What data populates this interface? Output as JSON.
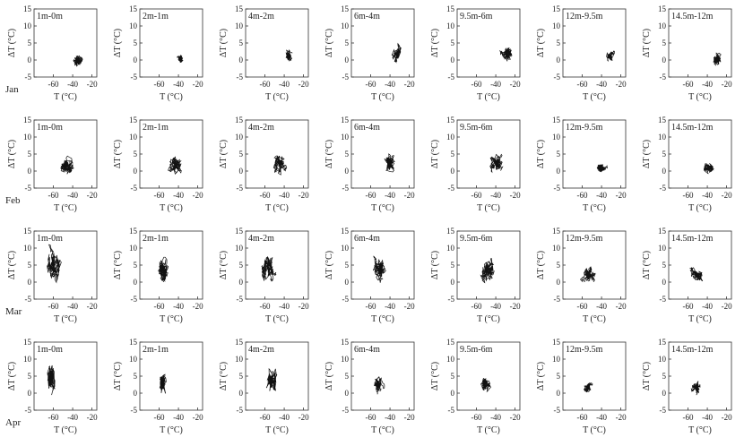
{
  "chart_data": {
    "type": "scatter",
    "title": "",
    "description_note": "",
    "xlabel": "T (°C)",
    "ylabel": "ΔT (°C)",
    "xlim": [
      -80,
      -15
    ],
    "ylim": [
      -5,
      15
    ],
    "x_ticks": [
      -60,
      -40,
      -20
    ],
    "y_ticks": [
      -5,
      0,
      5,
      10,
      15
    ],
    "x_tick_labels": [
      "-60",
      "-40",
      "-20"
    ],
    "y_tick_labels": [
      "-5",
      "0",
      "5",
      "10",
      "15"
    ],
    "row_labels": [
      "Jan",
      "Feb",
      "Mar",
      "Apr"
    ],
    "column_labels": [
      "1m-0m",
      "2m-1m",
      "4m-2m",
      "6m-4m",
      "9.5m-6m",
      "12m-9.5m",
      "14.5m-12m"
    ],
    "panels": [
      [
        {
          "title": "1m-0m",
          "x_center": -35,
          "x_spread": 5,
          "y_center": 0.0,
          "y_spread": 1.8,
          "seed": 11
        },
        {
          "title": "2m-1m",
          "x_center": -38,
          "x_spread": 4,
          "y_center": 0.5,
          "y_spread": 1.0,
          "seed": 12
        },
        {
          "title": "4m-2m",
          "x_center": -36,
          "x_spread": 4,
          "y_center": 1.5,
          "y_spread": 1.5,
          "seed": 13
        },
        {
          "title": "6m-4m",
          "x_center": -33,
          "x_spread": 5,
          "y_center": 2.0,
          "y_spread": 2.5,
          "seed": 14
        },
        {
          "title": "9.5m-6m",
          "x_center": -28,
          "x_spread": 6,
          "y_center": 2.0,
          "y_spread": 2.2,
          "seed": 15
        },
        {
          "title": "12m-9.5m",
          "x_center": -30,
          "x_spread": 5,
          "y_center": 1.0,
          "y_spread": 1.3,
          "seed": 16
        },
        {
          "title": "14.5m-12m",
          "x_center": -30,
          "x_spread": 5,
          "y_center": 0.3,
          "y_spread": 1.5,
          "seed": 17
        }
      ],
      [
        {
          "title": "1m-0m",
          "x_center": -45,
          "x_spread": 9,
          "y_center": 1.5,
          "y_spread": 2.5,
          "seed": 21
        },
        {
          "title": "2m-1m",
          "x_center": -42,
          "x_spread": 8,
          "y_center": 1.8,
          "y_spread": 2.2,
          "seed": 22
        },
        {
          "title": "4m-2m",
          "x_center": -43,
          "x_spread": 8,
          "y_center": 2.0,
          "y_spread": 2.3,
          "seed": 23
        },
        {
          "title": "6m-4m",
          "x_center": -40,
          "x_spread": 8,
          "y_center": 2.2,
          "y_spread": 2.3,
          "seed": 24
        },
        {
          "title": "9.5m-6m",
          "x_center": -38,
          "x_spread": 8,
          "y_center": 2.0,
          "y_spread": 2.5,
          "seed": 25
        },
        {
          "title": "12m-9.5m",
          "x_center": -40,
          "x_spread": 7,
          "y_center": 1.0,
          "y_spread": 1.3,
          "seed": 26
        },
        {
          "title": "14.5m-12m",
          "x_center": -38,
          "x_spread": 8,
          "y_center": 1.0,
          "y_spread": 1.6,
          "seed": 27
        }
      ],
      [
        {
          "title": "1m-0m",
          "x_center": -60,
          "x_spread": 8,
          "y_center": 5.0,
          "y_spread": 4.5,
          "seed": 31
        },
        {
          "title": "2m-1m",
          "x_center": -57,
          "x_spread": 8,
          "y_center": 4.0,
          "y_spread": 3.8,
          "seed": 32
        },
        {
          "title": "4m-2m",
          "x_center": -55,
          "x_spread": 8,
          "y_center": 4.0,
          "y_spread": 3.8,
          "seed": 33
        },
        {
          "title": "6m-4m",
          "x_center": -52,
          "x_spread": 9,
          "y_center": 4.0,
          "y_spread": 3.3,
          "seed": 34
        },
        {
          "title": "9.5m-6m",
          "x_center": -50,
          "x_spread": 9,
          "y_center": 3.5,
          "y_spread": 3.3,
          "seed": 35
        },
        {
          "title": "12m-9.5m",
          "x_center": -52,
          "x_spread": 7,
          "y_center": 2.0,
          "y_spread": 2.2,
          "seed": 36
        },
        {
          "title": "14.5m-12m",
          "x_center": -50,
          "x_spread": 7,
          "y_center": 2.0,
          "y_spread": 1.8,
          "seed": 37
        }
      ],
      [
        {
          "title": "1m-0m",
          "x_center": -62,
          "x_spread": 5,
          "y_center": 4.0,
          "y_spread": 4.5,
          "seed": 41
        },
        {
          "title": "2m-1m",
          "x_center": -57,
          "x_spread": 5,
          "y_center": 3.0,
          "y_spread": 2.8,
          "seed": 42
        },
        {
          "title": "4m-2m",
          "x_center": -53,
          "x_spread": 6,
          "y_center": 4.0,
          "y_spread": 3.5,
          "seed": 43
        },
        {
          "title": "6m-4m",
          "x_center": -52,
          "x_spread": 6,
          "y_center": 2.5,
          "y_spread": 2.0,
          "seed": 44
        },
        {
          "title": "9.5m-6m",
          "x_center": -50,
          "x_spread": 6,
          "y_center": 2.5,
          "y_spread": 2.0,
          "seed": 45
        },
        {
          "title": "12m-9.5m",
          "x_center": -55,
          "x_spread": 5,
          "y_center": 1.5,
          "y_spread": 1.5,
          "seed": 46
        },
        {
          "title": "14.5m-12m",
          "x_center": -52,
          "x_spread": 5,
          "y_center": 1.8,
          "y_spread": 1.7,
          "seed": 47
        }
      ]
    ]
  }
}
